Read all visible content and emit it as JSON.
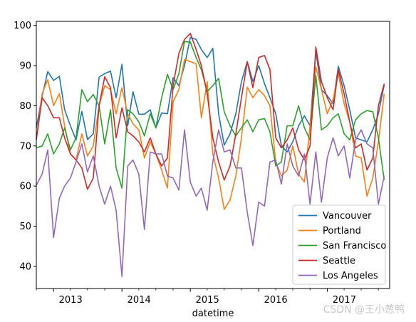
{
  "chart_data": {
    "type": "line",
    "xlabel": "datetime",
    "ylabel": "",
    "title": "",
    "xlim": [
      "2012-10-01",
      "2017-11-30"
    ],
    "ylim": [
      34.5,
      101
    ],
    "y_ticks": [
      40,
      50,
      60,
      70,
      80,
      90,
      100
    ],
    "x_ticks": [
      {
        "label": "2013",
        "date": "2013-01-01"
      },
      {
        "label": "2014",
        "date": "2014-01-01"
      },
      {
        "label": "2015",
        "date": "2015-01-01"
      },
      {
        "label": "2016",
        "date": "2016-01-01"
      },
      {
        "label": "2017",
        "date": "2017-01-01"
      }
    ],
    "legend": {
      "placement": "bottom-right"
    },
    "x": [
      "2012-10",
      "2012-11",
      "2012-12",
      "2013-01",
      "2013-02",
      "2013-03",
      "2013-04",
      "2013-05",
      "2013-06",
      "2013-07",
      "2013-08",
      "2013-09",
      "2013-10",
      "2013-11",
      "2013-12",
      "2014-01",
      "2014-02",
      "2014-03",
      "2014-04",
      "2014-05",
      "2014-06",
      "2014-07",
      "2014-08",
      "2014-09",
      "2014-10",
      "2014-11",
      "2014-12",
      "2015-01",
      "2015-02",
      "2015-03",
      "2015-04",
      "2015-05",
      "2015-06",
      "2015-07",
      "2015-08",
      "2015-09",
      "2015-10",
      "2015-11",
      "2015-12",
      "2016-01",
      "2016-02",
      "2016-03",
      "2016-04",
      "2016-05",
      "2016-06",
      "2016-07",
      "2016-08",
      "2016-09",
      "2016-10",
      "2016-11",
      "2016-12",
      "2017-01",
      "2017-02",
      "2017-03",
      "2017-04",
      "2017-05",
      "2017-06",
      "2017-07",
      "2017-08",
      "2017-09",
      "2017-10",
      "2017-11"
    ],
    "series": [
      {
        "name": "Vancouver",
        "color": "#1f77b4",
        "values": [
          74.5,
          82.4,
          88.5,
          86.3,
          87.3,
          79.0,
          75.0,
          71.5,
          78.6,
          71.6,
          73.0,
          87.1,
          88.0,
          88.6,
          82.0,
          90.3,
          75.0,
          83.5,
          77.9,
          77.9,
          79.0,
          74.5,
          78.2,
          78.0,
          87.0,
          85.0,
          90.0,
          97.0,
          96.5,
          94.0,
          92.0,
          94.3,
          78.0,
          70.2,
          73.0,
          78.0,
          86.0,
          91.0,
          86.0,
          90.0,
          85.5,
          82.0,
          78.0,
          70.0,
          68.5,
          71.0,
          75.0,
          77.5,
          75.0,
          93.5,
          84.0,
          82.5,
          80.5,
          89.8,
          85.0,
          79.0,
          72.0,
          71.5,
          71.0,
          74.0,
          78.0,
          85.2
        ]
      },
      {
        "name": "Portland",
        "color": "#ff7f0e",
        "values": [
          71.5,
          83.0,
          86.5,
          80.0,
          83.0,
          75.0,
          68.0,
          66.5,
          73.0,
          67.5,
          70.0,
          80.0,
          85.0,
          84.0,
          78.0,
          84.5,
          78.0,
          75.5,
          74.0,
          67.0,
          71.0,
          68.0,
          64.0,
          59.5,
          81.0,
          84.0,
          91.5,
          91.0,
          90.5,
          77.0,
          86.0,
          68.0,
          62.0,
          54.2,
          56.5,
          62.5,
          72.0,
          84.6,
          82.0,
          84.0,
          82.5,
          80.0,
          66.0,
          62.5,
          64.0,
          70.0,
          63.0,
          61.0,
          75.0,
          89.7,
          84.0,
          78.0,
          81.5,
          88.0,
          80.5,
          76.0,
          67.5,
          67.0,
          57.5,
          62.0,
          71.0,
          83.0
        ]
      },
      {
        "name": "San Francisco",
        "color": "#2ca02c",
        "values": [
          69.5,
          70.0,
          73.0,
          68.0,
          70.5,
          74.5,
          69.0,
          72.0,
          84.0,
          81.0,
          82.8,
          80.0,
          70.5,
          79.0,
          64.5,
          59.5,
          79.0,
          78.0,
          76.0,
          72.5,
          78.0,
          74.5,
          82.0,
          87.8,
          84.0,
          88.0,
          96.0,
          95.8,
          92.0,
          89.0,
          83.5,
          85.0,
          86.8,
          78.5,
          75.0,
          72.5,
          74.5,
          76.5,
          73.5,
          76.5,
          76.8,
          73.5,
          65.0,
          66.0,
          75.0,
          75.0,
          80.0,
          74.5,
          71.5,
          87.5,
          74.0,
          75.0,
          77.0,
          78.0,
          73.0,
          71.5,
          76.5,
          78.0,
          78.8,
          78.5,
          72.0,
          61.5
        ]
      },
      {
        "name": "Seattle",
        "color": "#d62728",
        "values": [
          71.5,
          82.0,
          80.0,
          77.0,
          77.0,
          72.0,
          68.0,
          66.5,
          64.5,
          59.2,
          62.0,
          80.0,
          87.2,
          84.5,
          72.0,
          79.5,
          73.5,
          72.5,
          71.0,
          68.5,
          72.0,
          68.0,
          65.0,
          67.0,
          85.0,
          93.0,
          96.5,
          98.0,
          94.0,
          90.0,
          83.0,
          72.0,
          66.0,
          61.5,
          65.0,
          73.0,
          82.0,
          91.0,
          84.5,
          92.0,
          92.5,
          89.0,
          72.0,
          69.5,
          71.5,
          74.5,
          69.0,
          66.5,
          70.0,
          94.6,
          86.0,
          82.0,
          79.0,
          89.0,
          83.0,
          76.0,
          69.5,
          70.5,
          64.0,
          67.0,
          80.0,
          85.5
        ]
      },
      {
        "name": "Los Angeles",
        "color": "#9467bd",
        "values": [
          60.2,
          63.0,
          69.0,
          47.2,
          57.0,
          60.0,
          62.0,
          66.0,
          70.5,
          63.5,
          67.5,
          60.0,
          55.5,
          60.0,
          54.0,
          37.5,
          65.0,
          66.5,
          63.0,
          49.2,
          68.5,
          68.0,
          68.0,
          62.5,
          62.0,
          59.0,
          74.0,
          61.0,
          57.5,
          59.5,
          54.0,
          66.0,
          74.0,
          68.5,
          69.0,
          64.5,
          64.5,
          53.5,
          45.2,
          56.0,
          55.0,
          66.0,
          66.5,
          60.5,
          70.5,
          65.0,
          62.5,
          68.0,
          55.5,
          68.5,
          56.0,
          67.0,
          72.0,
          67.5,
          70.0,
          62.0,
          71.5,
          74.0,
          70.5,
          69.5,
          55.5,
          62.5
        ]
      }
    ]
  },
  "watermark": "CSDN @王小葱鸭"
}
